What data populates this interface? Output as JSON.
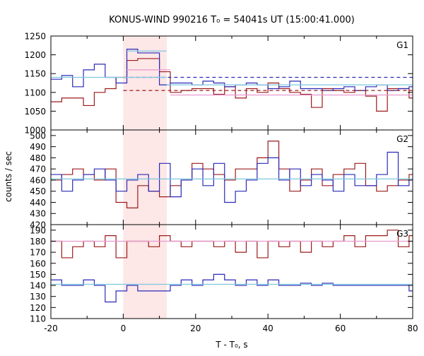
{
  "title": "KONUS-WIND 990216 T₀ = 54041s UT (15:00:41.000)",
  "xlabel": "T - T₀, s",
  "ylabel": "counts / sec",
  "colors": {
    "dark_red": "#9b1b1b",
    "blue": "#2a2ab8",
    "light_blue": "#7ec8e0",
    "pink": "#e79ad0",
    "shade": "#fde7e7"
  },
  "chart_data": [
    {
      "type": "line",
      "panel_label": "G1",
      "xlim": [
        -20,
        80
      ],
      "ylim": [
        1000,
        1250
      ],
      "yticks": [
        1000,
        1050,
        1100,
        1150,
        1200,
        1250
      ],
      "xticks": [
        -20,
        0,
        20,
        40,
        60,
        80
      ],
      "shaded_interval": [
        0,
        12
      ],
      "x_edges": [
        -20,
        -17,
        -14,
        -11,
        -8,
        -5,
        -2,
        1,
        4,
        7,
        10,
        13,
        16,
        19,
        22,
        25,
        28,
        31,
        34,
        37,
        40,
        43,
        46,
        49,
        52,
        55,
        58,
        61,
        64,
        67,
        70,
        73,
        76,
        79,
        82
      ],
      "series": [
        {
          "color_key": "dark_red",
          "step": true,
          "values": [
            1075,
            1085,
            1085,
            1065,
            1100,
            1110,
            1140,
            1185,
            1190,
            1190,
            1155,
            1100,
            1105,
            1110,
            1110,
            1095,
            1115,
            1085,
            1110,
            1100,
            1125,
            1110,
            1100,
            1095,
            1060,
            1110,
            1105,
            1100,
            1105,
            1090,
            1050,
            1110,
            1110,
            1085
          ]
        },
        {
          "color_key": "blue",
          "step": true,
          "values": [
            1135,
            1145,
            1115,
            1160,
            1175,
            1140,
            1125,
            1215,
            1205,
            1205,
            1120,
            1125,
            1125,
            1120,
            1130,
            1125,
            1115,
            1120,
            1125,
            1120,
            1110,
            1115,
            1130,
            1110,
            1110,
            1105,
            1110,
            1115,
            1105,
            1115,
            1120,
            1105,
            1110,
            1115
          ]
        },
        {
          "color_key": "blue",
          "dashed": true,
          "x_range": [
            0,
            80
          ],
          "value": 1140
        },
        {
          "color_key": "dark_red",
          "dashed": true,
          "x_range": [
            0,
            80
          ],
          "value": 1105
        },
        {
          "color_key": "light_blue",
          "x_range": [
            -20,
            80
          ],
          "value": 1140,
          "until": 12
        },
        {
          "color_key": "light_blue",
          "x_range": [
            12,
            80
          ],
          "value": 1120
        },
        {
          "color_key": "light_blue",
          "x_range": [
            1,
            12
          ],
          "value": 1210
        },
        {
          "color_key": "pink",
          "x_range": [
            13,
            80
          ],
          "value": 1093
        },
        {
          "color_key": "pink",
          "x_range": [
            1,
            13
          ],
          "value": 1160
        }
      ]
    },
    {
      "type": "line",
      "panel_label": "G2",
      "xlim": [
        -20,
        80
      ],
      "ylim": [
        420,
        505
      ],
      "yticks": [
        420,
        430,
        440,
        450,
        460,
        470,
        480,
        490,
        500
      ],
      "shaded_interval": [
        0,
        12
      ],
      "x_edges": [
        -20,
        -17,
        -14,
        -11,
        -8,
        -5,
        -2,
        1,
        4,
        7,
        10,
        13,
        16,
        19,
        22,
        25,
        28,
        31,
        34,
        37,
        40,
        43,
        46,
        49,
        52,
        55,
        58,
        61,
        64,
        67,
        70,
        73,
        76,
        79,
        82
      ],
      "series": [
        {
          "color_key": "dark_red",
          "step": true,
          "values": [
            460,
            465,
            470,
            465,
            460,
            470,
            440,
            435,
            455,
            450,
            445,
            455,
            460,
            475,
            470,
            465,
            460,
            470,
            470,
            480,
            495,
            470,
            450,
            460,
            470,
            455,
            465,
            470,
            475,
            455,
            450,
            455,
            460,
            465
          ]
        },
        {
          "color_key": "blue",
          "step": true,
          "values": [
            465,
            450,
            460,
            465,
            470,
            460,
            450,
            460,
            465,
            450,
            475,
            445,
            460,
            470,
            455,
            475,
            440,
            450,
            460,
            475,
            480,
            460,
            470,
            455,
            465,
            460,
            450,
            465,
            455,
            455,
            465,
            485,
            455,
            460
          ]
        },
        {
          "color_key": "light_blue",
          "x_range": [
            -20,
            80
          ],
          "value": 461
        }
      ]
    },
    {
      "type": "line",
      "panel_label": "G3",
      "xlim": [
        -20,
        80
      ],
      "ylim": [
        110,
        195
      ],
      "yticks": [
        110,
        120,
        130,
        140,
        150,
        160,
        170,
        180,
        190
      ],
      "xticks": [
        -20,
        0,
        20,
        40,
        60,
        80
      ],
      "xticklabels": [
        "-20",
        "0",
        "20",
        "40",
        "60",
        "80"
      ],
      "shaded_interval": [
        0,
        12
      ],
      "x_edges": [
        -20,
        -17,
        -14,
        -11,
        -8,
        -5,
        -2,
        1,
        4,
        7,
        10,
        13,
        16,
        19,
        22,
        25,
        28,
        31,
        34,
        37,
        40,
        43,
        46,
        49,
        52,
        55,
        58,
        61,
        64,
        67,
        70,
        73,
        76,
        79,
        82
      ],
      "series": [
        {
          "color_key": "dark_red",
          "step": true,
          "values": [
            180,
            165,
            175,
            180,
            175,
            185,
            165,
            180,
            180,
            175,
            185,
            180,
            175,
            180,
            180,
            175,
            180,
            170,
            180,
            165,
            180,
            175,
            180,
            170,
            180,
            175,
            180,
            185,
            175,
            185,
            185,
            190,
            175,
            185
          ]
        },
        {
          "color_key": "blue",
          "step": true,
          "values": [
            145,
            140,
            140,
            145,
            140,
            125,
            135,
            140,
            135,
            135,
            135,
            140,
            145,
            140,
            145,
            150,
            145,
            140,
            145,
            140,
            145,
            140,
            140,
            142,
            140,
            142,
            140,
            140,
            140,
            140,
            140,
            140,
            140,
            135
          ]
        },
        {
          "color_key": "pink",
          "x_range": [
            -20,
            80
          ],
          "value": 180
        },
        {
          "color_key": "light_blue",
          "x_range": [
            -20,
            80
          ],
          "value": 141
        }
      ]
    }
  ]
}
